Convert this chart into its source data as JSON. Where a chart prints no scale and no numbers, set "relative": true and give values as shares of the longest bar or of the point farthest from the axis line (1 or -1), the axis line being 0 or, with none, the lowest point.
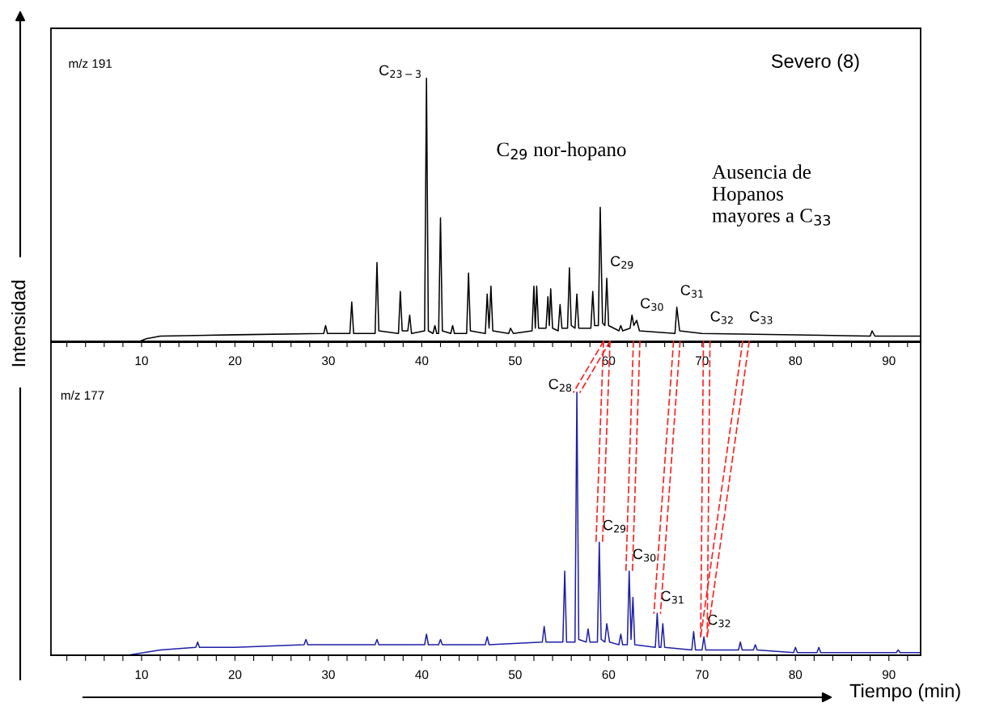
{
  "chart_data": [
    {
      "type": "line",
      "relative": true,
      "ylabel": "Intensidad",
      "xlim": [
        0.3,
        93.4
      ],
      "xticks": [
        {
          "value": 2,
          "label": null
        },
        {
          "value": 4,
          "label": null
        },
        {
          "value": 6,
          "label": null
        },
        {
          "value": 8,
          "label": null
        },
        10,
        {
          "value": 12,
          "label": null
        },
        {
          "value": 14,
          "label": null
        },
        {
          "value": 16,
          "label": null
        },
        {
          "value": 18,
          "label": null
        },
        20,
        {
          "value": 22,
          "label": null
        },
        {
          "value": 24,
          "label": null
        },
        {
          "value": 26,
          "label": null
        },
        {
          "value": 28,
          "label": null
        },
        30,
        {
          "value": 32,
          "label": null
        },
        {
          "value": 34,
          "label": null
        },
        {
          "value": 36,
          "label": null
        },
        {
          "value": 38,
          "label": null
        },
        40,
        {
          "value": 42,
          "label": null
        },
        {
          "value": 44,
          "label": null
        },
        {
          "value": 46,
          "label": null
        },
        {
          "value": 48,
          "label": null
        },
        50,
        {
          "value": 52,
          "label": null
        },
        {
          "value": 54,
          "label": null
        },
        {
          "value": 56,
          "label": null
        },
        {
          "value": 58,
          "label": null
        },
        60,
        {
          "value": 62,
          "label": null
        },
        {
          "value": 64,
          "label": null
        },
        {
          "value": 66,
          "label": null
        },
        {
          "value": 68,
          "label": null
        },
        70,
        {
          "value": 72,
          "label": null
        },
        {
          "value": 74,
          "label": null
        },
        {
          "value": 76,
          "label": null
        },
        {
          "value": 78,
          "label": null
        },
        80,
        {
          "value": 82,
          "label": null
        },
        {
          "value": 84,
          "label": null
        },
        {
          "value": 86,
          "label": null
        },
        {
          "value": 88,
          "label": null
        },
        90,
        {
          "value": 92,
          "label": null
        }
      ],
      "x": [
        0.3,
        9.8,
        10.5,
        12,
        20,
        29.5,
        29.7,
        29.9,
        32.3,
        32.5,
        32.7,
        35.0,
        35.2,
        35.4,
        37.5,
        37.7,
        37.9,
        38.5,
        38.7,
        38.9,
        40.3,
        40.5,
        40.7,
        41.2,
        41.4,
        41.6,
        41.8,
        42.0,
        42.2,
        43.1,
        43.3,
        43.5,
        44.8,
        45.0,
        45.2,
        46.8,
        47.0,
        47.2,
        47.4,
        47.6,
        49.3,
        49.5,
        49.8,
        51.8,
        52.0,
        52.15,
        52.3,
        52.5,
        53.3,
        53.5,
        53.65,
        53.8,
        54.0,
        54.6,
        54.8,
        55.0,
        55.6,
        55.8,
        56.0,
        56.4,
        56.6,
        56.8,
        58.1,
        58.3,
        58.5,
        58.9,
        59.1,
        59.35,
        59.6,
        59.8,
        60.0,
        61.1,
        61.3,
        61.5,
        62.3,
        62.5,
        62.7,
        63.0,
        63.3,
        67.1,
        67.3,
        67.6,
        70,
        88,
        88.2,
        88.5,
        93.4
      ],
      "series": [
        {
          "color": "#000000",
          "values": [
            0,
            0,
            0.01,
            0.02,
            0.025,
            0.03,
            0.06,
            0.03,
            0.03,
            0.15,
            0.03,
            0.03,
            0.3,
            0.04,
            0.03,
            0.19,
            0.04,
            0.04,
            0.1,
            0.03,
            0.04,
            1.0,
            0.04,
            0.03,
            0.06,
            0.03,
            0.03,
            0.47,
            0.04,
            0.03,
            0.06,
            0.03,
            0.03,
            0.26,
            0.04,
            0.03,
            0.18,
            0.05,
            0.21,
            0.04,
            0.03,
            0.05,
            0.03,
            0.04,
            0.21,
            0.05,
            0.21,
            0.05,
            0.05,
            0.17,
            0.06,
            0.2,
            0.05,
            0.04,
            0.14,
            0.05,
            0.05,
            0.28,
            0.06,
            0.05,
            0.18,
            0.05,
            0.05,
            0.19,
            0.06,
            0.06,
            0.51,
            0.07,
            0.06,
            0.24,
            0.06,
            0.04,
            0.06,
            0.04,
            0.05,
            0.1,
            0.06,
            0.08,
            0.04,
            0.03,
            0.13,
            0.04,
            0.03,
            0.02,
            0.04,
            0.02,
            0.02
          ]
        }
      ],
      "annotations": [
        "m/z 191",
        "Severo (8)",
        "C$_{29}$ nor-hopano",
        "Ausencia de\nHopanos\nmayores a C$_{33}$",
        {
          "text": "C$_{23−3}$",
          "x": 40.5,
          "y": 1.0
        },
        {
          "text": "C$_{29}$",
          "x": 59.8,
          "y": 0.24
        },
        {
          "text": "C$_{30}$",
          "x": 63.0,
          "y": 0.08
        },
        {
          "text": "C$_{31}$",
          "x": 67.3,
          "y": 0.13
        },
        {
          "text": "C$_{32}$",
          "x": 70.5,
          "y": 0.03
        },
        {
          "text": "C$_{33}$",
          "x": 74.7,
          "y": 0.03
        }
      ]
    },
    {
      "type": "line",
      "relative": true,
      "xlabel": "Tiempo (min)",
      "xlim": [
        0.3,
        93.4
      ],
      "xticks": [
        {
          "value": 2,
          "label": null
        },
        {
          "value": 4,
          "label": null
        },
        {
          "value": 6,
          "label": null
        },
        {
          "value": 8,
          "label": null
        },
        10,
        {
          "value": 12,
          "label": null
        },
        {
          "value": 14,
          "label": null
        },
        {
          "value": 16,
          "label": null
        },
        {
          "value": 18,
          "label": null
        },
        20,
        {
          "value": 22,
          "label": null
        },
        {
          "value": 24,
          "label": null
        },
        {
          "value": 26,
          "label": null
        },
        {
          "value": 28,
          "label": null
        },
        30,
        {
          "value": 32,
          "label": null
        },
        {
          "value": 34,
          "label": null
        },
        {
          "value": 36,
          "label": null
        },
        {
          "value": 38,
          "label": null
        },
        40,
        {
          "value": 42,
          "label": null
        },
        {
          "value": 44,
          "label": null
        },
        {
          "value": 46,
          "label": null
        },
        {
          "value": 48,
          "label": null
        },
        50,
        {
          "value": 52,
          "label": null
        },
        {
          "value": 54,
          "label": null
        },
        {
          "value": 56,
          "label": null
        },
        {
          "value": 58,
          "label": null
        },
        60,
        {
          "value": 62,
          "label": null
        },
        {
          "value": 64,
          "label": null
        },
        {
          "value": 66,
          "label": null
        },
        {
          "value": 68,
          "label": null
        },
        70,
        {
          "value": 72,
          "label": null
        },
        {
          "value": 74,
          "label": null
        },
        {
          "value": 76,
          "label": null
        },
        {
          "value": 78,
          "label": null
        },
        80,
        {
          "value": 82,
          "label": null
        },
        {
          "value": 84,
          "label": null
        },
        {
          "value": 86,
          "label": null
        },
        {
          "value": 88,
          "label": null
        },
        90,
        {
          "value": 92,
          "label": null
        }
      ],
      "x": [
        8.5,
        12,
        15.8,
        16.0,
        16.2,
        20,
        27.4,
        27.6,
        27.8,
        35.0,
        35.2,
        35.4,
        40.3,
        40.5,
        40.7,
        41.8,
        42.0,
        42.2,
        46.8,
        47.0,
        47.2,
        52.9,
        53.1,
        53.3,
        55.1,
        55.3,
        55.5,
        56.4,
        56.6,
        56.8,
        57.6,
        57.8,
        58.0,
        58.8,
        59.0,
        59.2,
        59.6,
        59.8,
        60.1,
        61.1,
        61.3,
        61.5,
        62.0,
        62.2,
        62.4,
        62.6,
        62.8,
        65.0,
        65.2,
        65.4,
        65.6,
        65.8,
        66.0,
        68.9,
        69.1,
        69.3,
        70.0,
        70.2,
        70.4,
        73.9,
        74.1,
        74.3,
        75.5,
        75.7,
        75.9,
        79.8,
        80.0,
        80.2,
        82.3,
        82.5,
        82.7,
        90.8,
        91.0,
        91.2,
        93.4
      ],
      "series": [
        {
          "color": "#1f1fa8",
          "values": [
            0,
            0.02,
            0.03,
            0.05,
            0.03,
            0.03,
            0.04,
            0.06,
            0.04,
            0.04,
            0.06,
            0.04,
            0.04,
            0.08,
            0.04,
            0.04,
            0.06,
            0.04,
            0.04,
            0.07,
            0.04,
            0.05,
            0.11,
            0.05,
            0.05,
            0.32,
            0.05,
            0.05,
            1.0,
            0.06,
            0.05,
            0.1,
            0.05,
            0.05,
            0.43,
            0.06,
            0.05,
            0.12,
            0.05,
            0.04,
            0.08,
            0.04,
            0.04,
            0.32,
            0.06,
            0.22,
            0.04,
            0.03,
            0.16,
            0.03,
            0.03,
            0.12,
            0.03,
            0.02,
            0.09,
            0.02,
            0.02,
            0.07,
            0.02,
            0.02,
            0.05,
            0.02,
            0.02,
            0.04,
            0.02,
            0.01,
            0.03,
            0.01,
            0.01,
            0.03,
            0.01,
            0.01,
            0.02,
            0.01,
            0.01
          ]
        }
      ],
      "annotations": [
        "m/z 177",
        {
          "text": "C$_{28}$",
          "x": 56.6,
          "y": 1.0
        },
        {
          "text": "C$_{29}$",
          "x": 59.0,
          "y": 0.43
        },
        {
          "text": "C$_{30}$",
          "x": 62.2,
          "y": 0.32
        },
        {
          "text": "C$_{31}$",
          "x": 65.2,
          "y": 0.16
        },
        {
          "text": "C$_{32}$",
          "x": 70.2,
          "y": 0.07
        }
      ]
    }
  ]
}
